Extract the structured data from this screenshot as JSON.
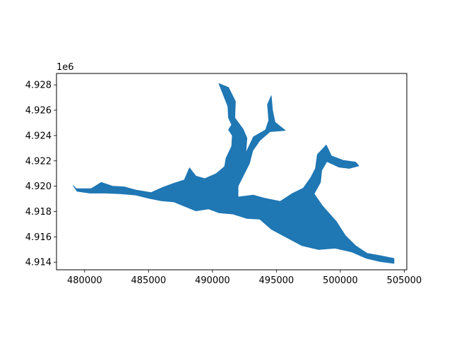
{
  "chart_data": {
    "type": "map",
    "title": "",
    "xlabel": "",
    "ylabel": "",
    "y_offset_label": "1e6",
    "xlim": [
      477800,
      505200
    ],
    "ylim": [
      4913400,
      4928900
    ],
    "grid": false,
    "legend": "none",
    "fill_color": "#1f77b4",
    "x_ticks": [
      {
        "value": 480000,
        "label": "480000"
      },
      {
        "value": 485000,
        "label": "485000"
      },
      {
        "value": 490000,
        "label": "490000"
      },
      {
        "value": 495000,
        "label": "495000"
      },
      {
        "value": 500000,
        "label": "500000"
      },
      {
        "value": 505000,
        "label": "505000"
      }
    ],
    "y_ticks": [
      {
        "value": 4914000,
        "label": "4.914"
      },
      {
        "value": 4916000,
        "label": "4.916"
      },
      {
        "value": 4918000,
        "label": "4.918"
      },
      {
        "value": 4920000,
        "label": "4.920"
      },
      {
        "value": 4922000,
        "label": "4.922"
      },
      {
        "value": 4924000,
        "label": "4.924"
      },
      {
        "value": 4926000,
        "label": "4.926"
      },
      {
        "value": 4928000,
        "label": "4.928"
      }
    ],
    "regions": [
      {
        "name": "main-water-body",
        "polygon": [
          [
            479100,
            4920050
          ],
          [
            479350,
            4919800
          ],
          [
            480500,
            4919800
          ],
          [
            481300,
            4920300
          ],
          [
            482200,
            4920000
          ],
          [
            483100,
            4919950
          ],
          [
            484000,
            4919700
          ],
          [
            485200,
            4919500
          ],
          [
            486100,
            4919900
          ],
          [
            486900,
            4920200
          ],
          [
            487800,
            4920500
          ],
          [
            488200,
            4921450
          ],
          [
            488700,
            4920800
          ],
          [
            489400,
            4920600
          ],
          [
            490300,
            4921000
          ],
          [
            490950,
            4921550
          ],
          [
            491050,
            4922200
          ],
          [
            491500,
            4923150
          ],
          [
            491550,
            4924000
          ],
          [
            491250,
            4924450
          ],
          [
            491500,
            4924850
          ],
          [
            491250,
            4925400
          ],
          [
            491200,
            4926300
          ],
          [
            490500,
            4928100
          ],
          [
            491250,
            4927800
          ],
          [
            491800,
            4926700
          ],
          [
            491750,
            4925400
          ],
          [
            492400,
            4924500
          ],
          [
            492700,
            4923800
          ],
          [
            492600,
            4922500
          ],
          [
            492300,
            4921600
          ],
          [
            492100,
            4920950
          ],
          [
            492550,
            4922500
          ],
          [
            493200,
            4923900
          ],
          [
            494150,
            4924450
          ],
          [
            494400,
            4925200
          ],
          [
            494300,
            4926450
          ],
          [
            494600,
            4927150
          ],
          [
            494700,
            4926000
          ],
          [
            494900,
            4925050
          ],
          [
            495700,
            4924400
          ],
          [
            494500,
            4924300
          ],
          [
            493700,
            4923600
          ],
          [
            493150,
            4922800
          ],
          [
            492900,
            4921800
          ],
          [
            492450,
            4920900
          ],
          [
            492000,
            4920000
          ],
          [
            492000,
            4919150
          ],
          [
            493200,
            4919300
          ],
          [
            494100,
            4919050
          ],
          [
            495300,
            4918800
          ],
          [
            496200,
            4919400
          ],
          [
            497100,
            4919850
          ],
          [
            497700,
            4920700
          ],
          [
            498050,
            4921400
          ],
          [
            498200,
            4922500
          ],
          [
            498900,
            4923250
          ],
          [
            499300,
            4922400
          ],
          [
            500200,
            4922050
          ],
          [
            501200,
            4921900
          ],
          [
            501450,
            4921600
          ],
          [
            500700,
            4921400
          ],
          [
            499900,
            4921500
          ],
          [
            498950,
            4921950
          ],
          [
            498550,
            4921250
          ],
          [
            498450,
            4920300
          ],
          [
            497950,
            4919400
          ],
          [
            498600,
            4918450
          ],
          [
            499700,
            4917200
          ],
          [
            500400,
            4916100
          ],
          [
            501200,
            4915300
          ],
          [
            502100,
            4914700
          ],
          [
            503200,
            4914500
          ],
          [
            504200,
            4914300
          ],
          [
            504200,
            4913900
          ],
          [
            503100,
            4914050
          ],
          [
            502050,
            4914300
          ],
          [
            500900,
            4914800
          ],
          [
            499600,
            4915100
          ],
          [
            498300,
            4915000
          ],
          [
            497000,
            4915300
          ],
          [
            495800,
            4915950
          ],
          [
            494600,
            4916600
          ],
          [
            493700,
            4917400
          ],
          [
            492700,
            4917450
          ],
          [
            491600,
            4917800
          ],
          [
            490500,
            4917900
          ],
          [
            489700,
            4918200
          ],
          [
            488700,
            4918050
          ],
          [
            487600,
            4918500
          ],
          [
            487000,
            4918750
          ],
          [
            486000,
            4918850
          ],
          [
            485000,
            4919050
          ],
          [
            484000,
            4919300
          ],
          [
            482800,
            4919400
          ],
          [
            481600,
            4919450
          ],
          [
            480400,
            4919450
          ],
          [
            479400,
            4919600
          ],
          [
            479100,
            4920050
          ]
        ]
      }
    ]
  }
}
